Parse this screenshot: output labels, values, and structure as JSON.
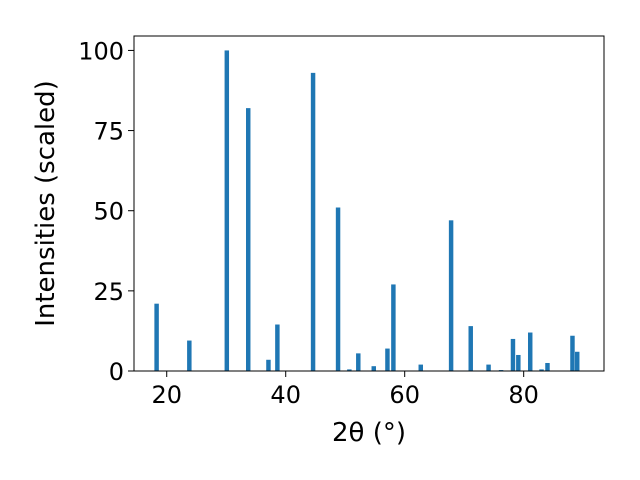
{
  "chart_data": {
    "type": "bar",
    "title": "",
    "xlabel": "2θ (°)",
    "ylabel": "Intensities (scaled)",
    "xlim": [
      14.5,
      93.5
    ],
    "ylim": [
      0,
      104.5
    ],
    "xticks": [
      20,
      40,
      60,
      80
    ],
    "yticks": [
      0,
      25,
      50,
      75,
      100
    ],
    "bar_width": 0.75,
    "bar_color": "#1f77b4",
    "grid": false,
    "legend": "none",
    "x": [
      18.3,
      23.8,
      30.1,
      33.7,
      37.1,
      38.6,
      44.6,
      48.8,
      50.7,
      52.2,
      54.8,
      57.1,
      58.1,
      62.7,
      67.8,
      71.1,
      74.1,
      76.2,
      78.2,
      79.1,
      81.1,
      83.0,
      84.0,
      88.2,
      89.0
    ],
    "values": [
      21,
      9.5,
      100,
      82,
      3.5,
      14.5,
      93,
      51,
      0.5,
      5.5,
      1.5,
      7,
      27,
      2,
      47,
      14,
      2,
      0.3,
      10,
      5,
      12,
      0.5,
      2.5,
      11,
      6
    ]
  }
}
